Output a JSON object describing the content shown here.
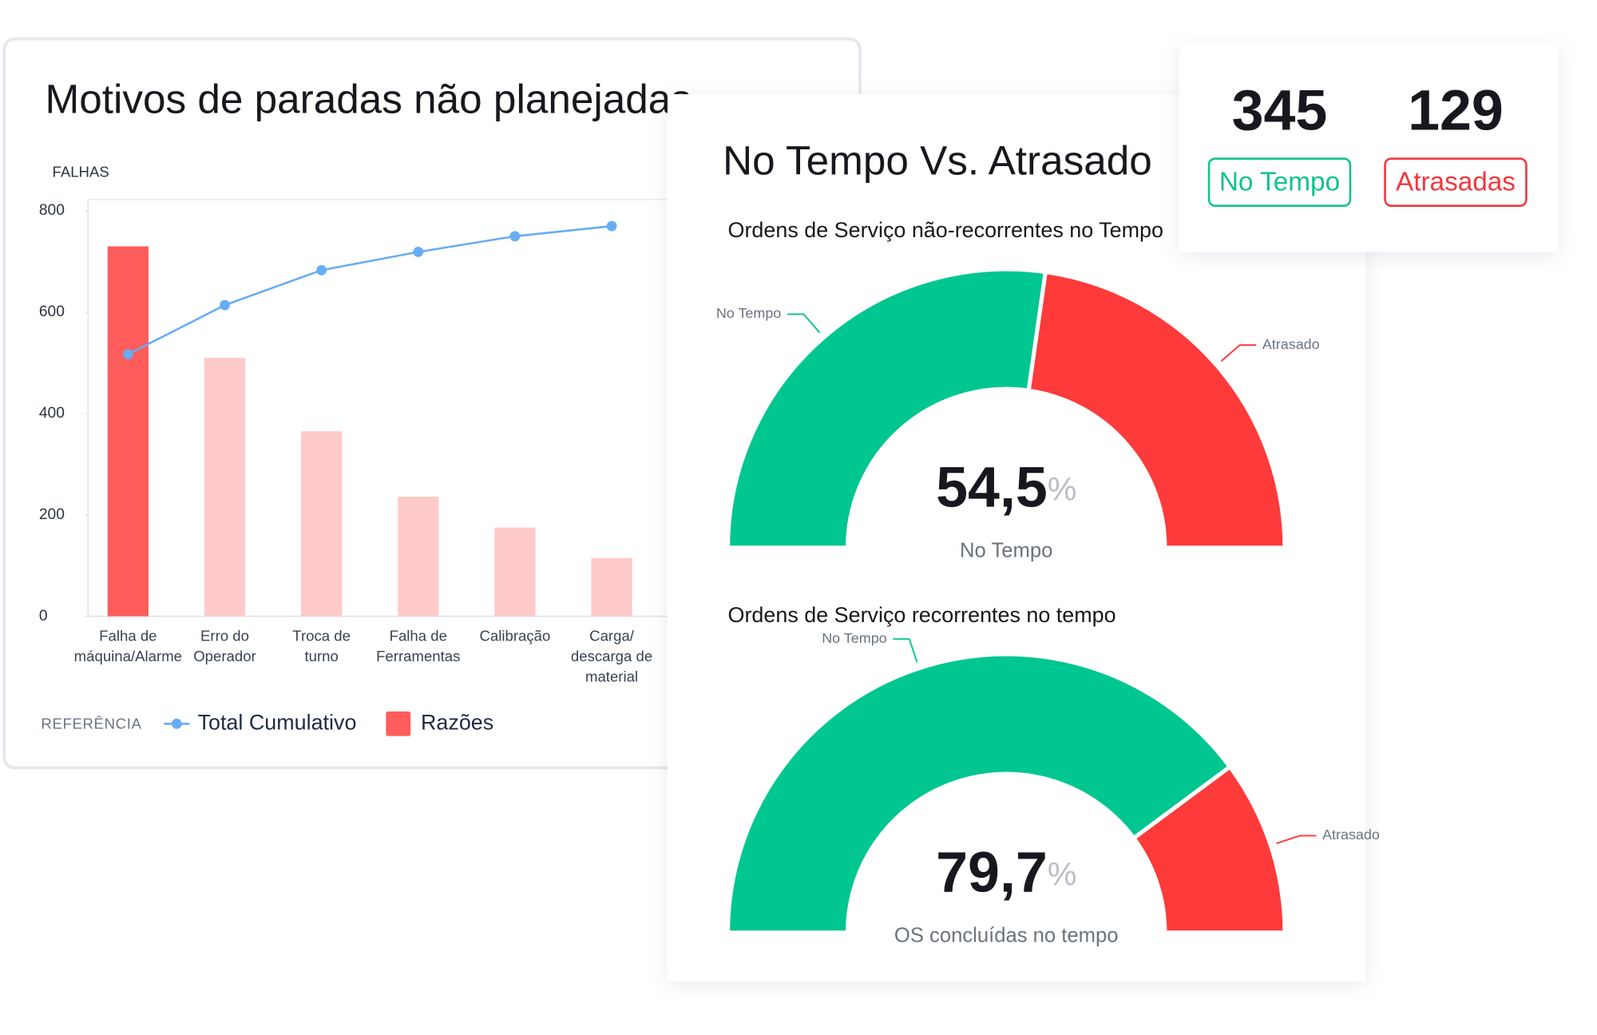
{
  "chart_data": [
    {
      "type": "bar",
      "title": "Motivos de paradas não planejadas",
      "ylabel": "FALHAS",
      "categories": [
        "Falha de\nmáquina/Alarme",
        "Erro do\nOperador",
        "Troca de\nturno",
        "Falha de\nFerramentas",
        "Calibração",
        "Carga/\ndescarga de\nmaterial"
      ],
      "series": [
        {
          "name": "Razões",
          "type": "bar",
          "color": "#ff5c5c",
          "colors": [
            "#ff5c5c",
            "#ffcaca",
            "#ffcaca",
            "#ffcaca",
            "#ffcaca",
            "#ffcaca"
          ],
          "values": [
            730,
            510,
            365,
            236,
            175,
            115
          ]
        },
        {
          "name": "Total Cumulativo",
          "type": "line",
          "color": "#66adf2",
          "values": [
            517,
            614,
            683,
            719,
            750,
            770
          ]
        }
      ],
      "ylim": [
        0,
        800
      ],
      "yticks": [
        0,
        200,
        400,
        600,
        800
      ],
      "grid": false,
      "legend_title": "REFERÊNCIA"
    },
    {
      "type": "gauge",
      "title": "Ordens de Serviço não-recorrentes no Tempo",
      "caption": "No Tempo",
      "unit": "%",
      "series": [
        {
          "name": "No Tempo",
          "color": "#00c68f",
          "values": [
            54.5
          ],
          "value_labels": [
            "54,5"
          ]
        },
        {
          "name": "Atrasado",
          "color": "#ff3a3a",
          "values": [
            45.5
          ]
        }
      ]
    },
    {
      "type": "gauge",
      "title": "Ordens de Serviço recorrentes no tempo",
      "caption": "OS concluídas no tempo",
      "unit": "%",
      "series": [
        {
          "name": "No Tempo",
          "color": "#00c68f",
          "values": [
            79.7
          ],
          "value_labels": [
            "79,7"
          ]
        },
        {
          "name": "Atrasado",
          "color": "#ff3a3a",
          "values": [
            20.3
          ]
        }
      ]
    }
  ],
  "gauge_panel": {
    "title": "No Tempo Vs. Atrasado"
  },
  "kpi": [
    {
      "value": 345,
      "label": "No Tempo",
      "color": "#10c28e"
    },
    {
      "value": 129,
      "label": "Atrasadas",
      "color": "#f0383f"
    }
  ]
}
